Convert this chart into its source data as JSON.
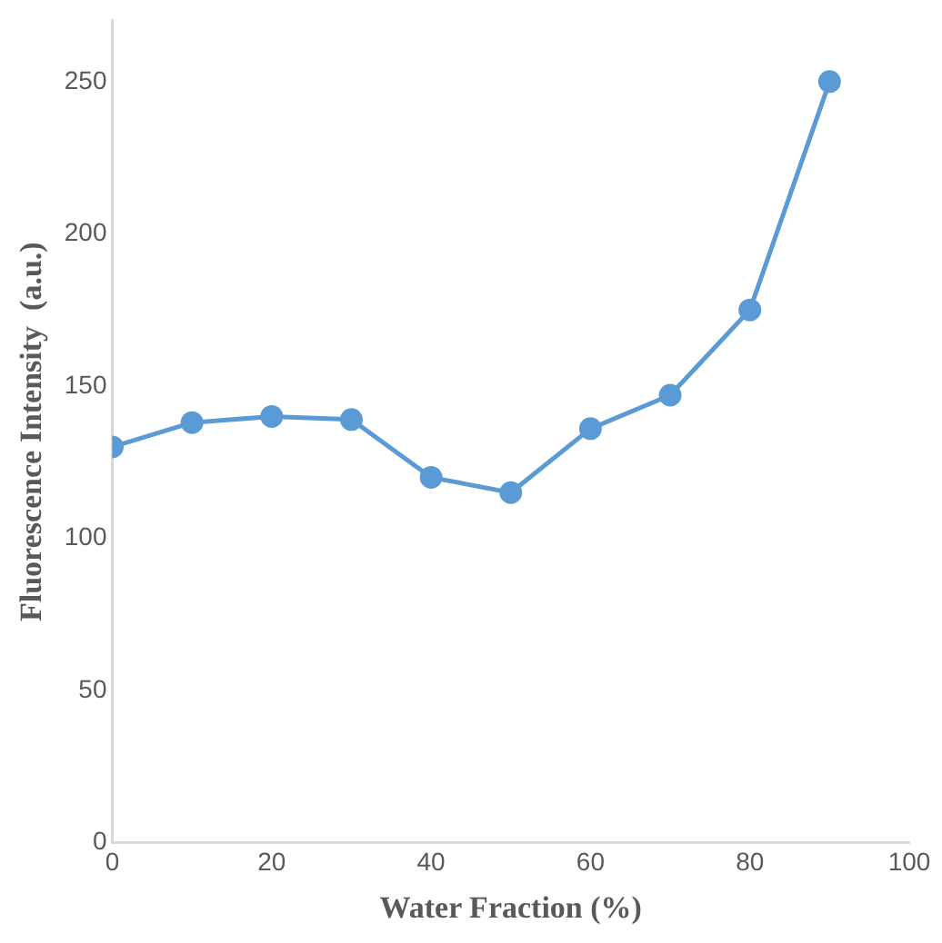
{
  "chart_data": {
    "type": "line",
    "xlabel": "Water Fraction (%)",
    "ylabel": "Fluorescence Intensity  (a.u.)",
    "x": [
      0,
      10,
      20,
      30,
      40,
      50,
      60,
      70,
      80,
      90
    ],
    "series": [
      {
        "color": "#5b9bd5",
        "values": [
          130,
          138,
          140,
          139,
          120,
          115,
          136,
          147,
          175,
          250
        ]
      }
    ],
    "xlim": [
      0,
      100
    ],
    "xticks": [
      0,
      20,
      40,
      60,
      80,
      100
    ],
    "ylim": [
      0,
      270
    ],
    "yticks": [
      0,
      50,
      100,
      150,
      200,
      250
    ],
    "grid": false,
    "legend": false,
    "marker": "circle",
    "line_style": "solid"
  }
}
